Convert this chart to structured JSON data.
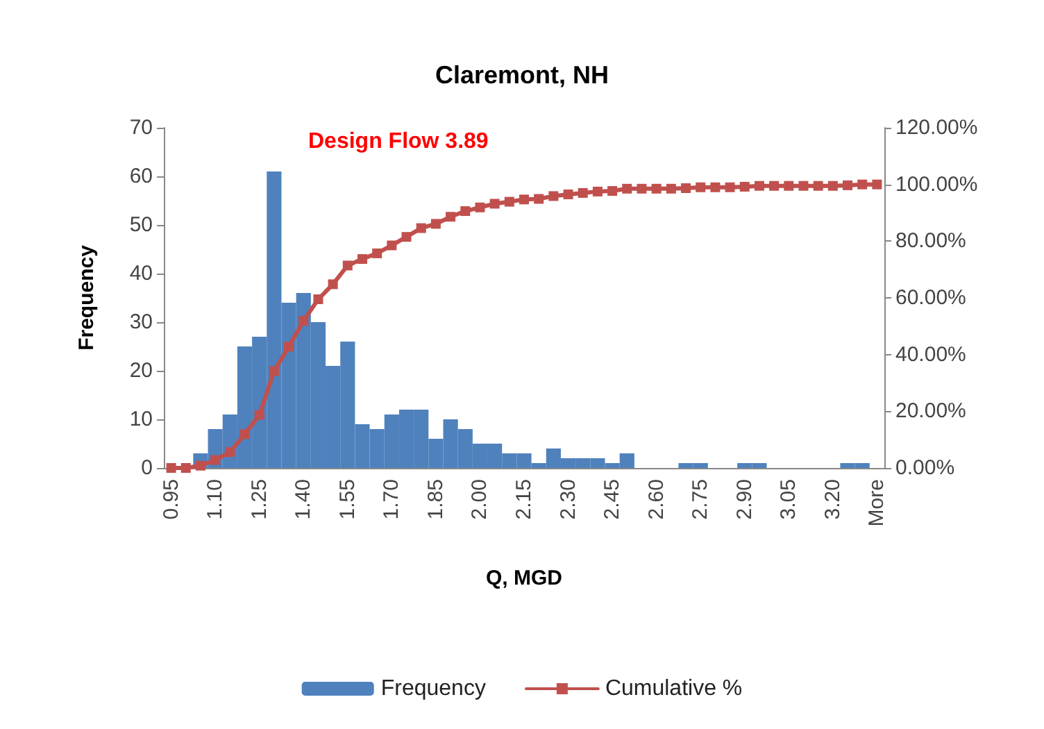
{
  "chart_data": {
    "type": "bar",
    "title": "Claremont, NH",
    "xlabel": "Q, MGD",
    "ylabel": "Frequency",
    "annotations": [
      "Design Flow 3.89"
    ],
    "categories": [
      "0.95",
      null,
      null,
      "1.10",
      null,
      null,
      "1.25",
      null,
      null,
      "1.40",
      null,
      null,
      "1.55",
      null,
      null,
      "1.70",
      null,
      null,
      "1.85",
      null,
      null,
      "2.00",
      null,
      null,
      "2.15",
      null,
      null,
      "2.30",
      null,
      null,
      "2.45",
      null,
      null,
      "2.60",
      null,
      null,
      "2.75",
      null,
      null,
      "2.90",
      null,
      null,
      "3.05",
      null,
      null,
      "3.20",
      null,
      null,
      "More"
    ],
    "series": [
      {
        "name": "Frequency",
        "color": "#4f81bd",
        "values": [
          0,
          0,
          3,
          8,
          11,
          25,
          27,
          61,
          34,
          36,
          30,
          21,
          26,
          9,
          8,
          11,
          12,
          12,
          6,
          10,
          8,
          5,
          5,
          3,
          3,
          1,
          4,
          2,
          2,
          2,
          1,
          3,
          0,
          0,
          0,
          1,
          1,
          0,
          0,
          1,
          1,
          0,
          0,
          0,
          0,
          0,
          1,
          1,
          0
        ]
      },
      {
        "name": "Cumulative %",
        "type": "line",
        "axis": "y2",
        "color": "#c0504d",
        "values": [
          0,
          0,
          0.8,
          2.8,
          5.6,
          11.9,
          18.7,
          34.2,
          42.8,
          51.9,
          59.5,
          64.8,
          71.4,
          73.7,
          75.7,
          78.5,
          81.5,
          84.6,
          86.1,
          88.6,
          90.6,
          91.9,
          93.2,
          93.9,
          94.7,
          94.9,
          95.9,
          96.5,
          97.0,
          97.5,
          97.7,
          98.5,
          98.5,
          98.5,
          98.5,
          98.7,
          99.0,
          99.0,
          99.0,
          99.2,
          99.5,
          99.5,
          99.5,
          99.5,
          99.5,
          99.5,
          99.7,
          100,
          100
        ]
      }
    ],
    "ylim": [
      0,
      70
    ],
    "yticks": [
      0,
      10,
      20,
      30,
      40,
      50,
      60,
      70
    ],
    "y2lim": [
      0,
      120
    ],
    "y2ticks": [
      {
        "value": 0,
        "label": "0.00%"
      },
      {
        "value": 20,
        "label": "20.00%"
      },
      {
        "value": 40,
        "label": "40.00%"
      },
      {
        "value": 60,
        "label": "60.00%"
      },
      {
        "value": 80,
        "label": "80.00%"
      },
      {
        "value": 100,
        "label": "100.00%"
      },
      {
        "value": 120,
        "label": "120.00%"
      }
    ],
    "grid": false,
    "legend": "bottom",
    "marker": "square"
  }
}
